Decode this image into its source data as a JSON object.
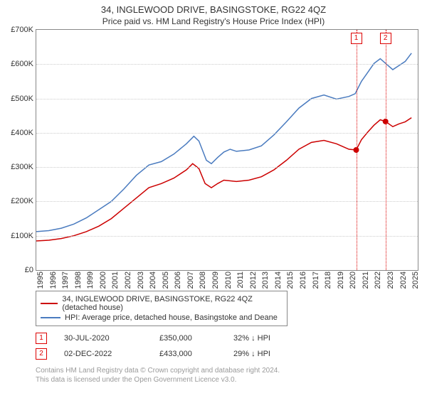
{
  "title": "34, INGLEWOOD DRIVE, BASINGSTOKE, RG22 4QZ",
  "subtitle": "Price paid vs. HM Land Registry's House Price Index (HPI)",
  "chart": {
    "type": "line",
    "background_color": "#ffffff",
    "grid_color": "#cccccc",
    "border_color": "#888888",
    "y": {
      "min": 0,
      "max": 700000,
      "ticks": [
        0,
        100000,
        200000,
        300000,
        400000,
        500000,
        600000,
        700000
      ],
      "labels": [
        "£0",
        "£100K",
        "£200K",
        "£300K",
        "£400K",
        "£500K",
        "£600K",
        "£700K"
      ],
      "label_fontsize": 11
    },
    "x": {
      "min": 1995,
      "max": 2025.5,
      "tick_years": [
        1995,
        1996,
        1997,
        1998,
        1999,
        2000,
        2001,
        2002,
        2003,
        2004,
        2005,
        2006,
        2007,
        2008,
        2009,
        2010,
        2011,
        2012,
        2013,
        2014,
        2015,
        2016,
        2017,
        2018,
        2019,
        2020,
        2021,
        2022,
        2023,
        2024,
        2025
      ],
      "label_fontsize": 11
    },
    "series": [
      {
        "key": "property",
        "label": "34, INGLEWOOD DRIVE, BASINGSTOKE, RG22 4QZ (detached house)",
        "color": "#cc0000",
        "line_width": 1.5,
        "points": [
          [
            1995.0,
            85000
          ],
          [
            1996.0,
            87000
          ],
          [
            1997.0,
            92000
          ],
          [
            1998.0,
            100000
          ],
          [
            1999.0,
            112000
          ],
          [
            2000.0,
            128000
          ],
          [
            2001.0,
            150000
          ],
          [
            2002.0,
            180000
          ],
          [
            2003.0,
            210000
          ],
          [
            2004.0,
            240000
          ],
          [
            2005.0,
            252000
          ],
          [
            2006.0,
            268000
          ],
          [
            2007.0,
            292000
          ],
          [
            2007.5,
            310000
          ],
          [
            2008.0,
            296000
          ],
          [
            2008.5,
            252000
          ],
          [
            2009.0,
            240000
          ],
          [
            2009.5,
            252000
          ],
          [
            2010.0,
            262000
          ],
          [
            2011.0,
            258000
          ],
          [
            2012.0,
            262000
          ],
          [
            2013.0,
            272000
          ],
          [
            2014.0,
            292000
          ],
          [
            2015.0,
            320000
          ],
          [
            2016.0,
            352000
          ],
          [
            2017.0,
            372000
          ],
          [
            2018.0,
            378000
          ],
          [
            2019.0,
            368000
          ],
          [
            2019.5,
            360000
          ],
          [
            2020.0,
            352000
          ],
          [
            2020.58,
            350000
          ],
          [
            2021.0,
            380000
          ],
          [
            2021.5,
            402000
          ],
          [
            2022.0,
            422000
          ],
          [
            2022.5,
            438000
          ],
          [
            2022.92,
            433000
          ],
          [
            2023.5,
            418000
          ],
          [
            2024.0,
            426000
          ],
          [
            2024.5,
            432000
          ],
          [
            2025.0,
            444000
          ]
        ]
      },
      {
        "key": "hpi",
        "label": "HPI: Average price, detached house, Basingstoke and Deane",
        "color": "#4a7bbf",
        "line_width": 1.5,
        "points": [
          [
            1995.0,
            112000
          ],
          [
            1996.0,
            115000
          ],
          [
            1997.0,
            122000
          ],
          [
            1998.0,
            134000
          ],
          [
            1999.0,
            152000
          ],
          [
            2000.0,
            176000
          ],
          [
            2001.0,
            200000
          ],
          [
            2002.0,
            236000
          ],
          [
            2003.0,
            276000
          ],
          [
            2004.0,
            306000
          ],
          [
            2005.0,
            316000
          ],
          [
            2006.0,
            338000
          ],
          [
            2007.0,
            368000
          ],
          [
            2007.6,
            390000
          ],
          [
            2008.0,
            376000
          ],
          [
            2008.6,
            320000
          ],
          [
            2009.0,
            310000
          ],
          [
            2009.5,
            328000
          ],
          [
            2010.0,
            344000
          ],
          [
            2010.5,
            352000
          ],
          [
            2011.0,
            346000
          ],
          [
            2012.0,
            350000
          ],
          [
            2013.0,
            362000
          ],
          [
            2014.0,
            394000
          ],
          [
            2015.0,
            432000
          ],
          [
            2016.0,
            472000
          ],
          [
            2017.0,
            500000
          ],
          [
            2018.0,
            510000
          ],
          [
            2019.0,
            498000
          ],
          [
            2020.0,
            506000
          ],
          [
            2020.5,
            514000
          ],
          [
            2021.0,
            550000
          ],
          [
            2021.5,
            576000
          ],
          [
            2022.0,
            602000
          ],
          [
            2022.5,
            616000
          ],
          [
            2023.0,
            600000
          ],
          [
            2023.5,
            584000
          ],
          [
            2024.0,
            596000
          ],
          [
            2024.5,
            608000
          ],
          [
            2025.0,
            632000
          ]
        ]
      }
    ],
    "sale_markers": [
      {
        "n": "1",
        "year": 2020.58,
        "price": 350000
      },
      {
        "n": "2",
        "year": 2022.92,
        "price": 433000
      }
    ]
  },
  "legend": {
    "items": [
      {
        "color": "#cc0000",
        "label": "34, INGLEWOOD DRIVE, BASINGSTOKE, RG22 4QZ (detached house)"
      },
      {
        "color": "#4a7bbf",
        "label": "HPI: Average price, detached house, Basingstoke and Deane"
      }
    ]
  },
  "sales": [
    {
      "n": "1",
      "date": "30-JUL-2020",
      "price": "£350,000",
      "delta": "32%",
      "arrow": "↓",
      "vs": "HPI"
    },
    {
      "n": "2",
      "date": "02-DEC-2022",
      "price": "£433,000",
      "delta": "29%",
      "arrow": "↓",
      "vs": "HPI"
    }
  ],
  "footer": {
    "line1": "Contains HM Land Registry data © Crown copyright and database right 2024.",
    "line2": "This data is licensed under the Open Government Licence v3.0."
  },
  "colors": {
    "callout": "#d00000",
    "footer_text": "#9a9a9a"
  }
}
